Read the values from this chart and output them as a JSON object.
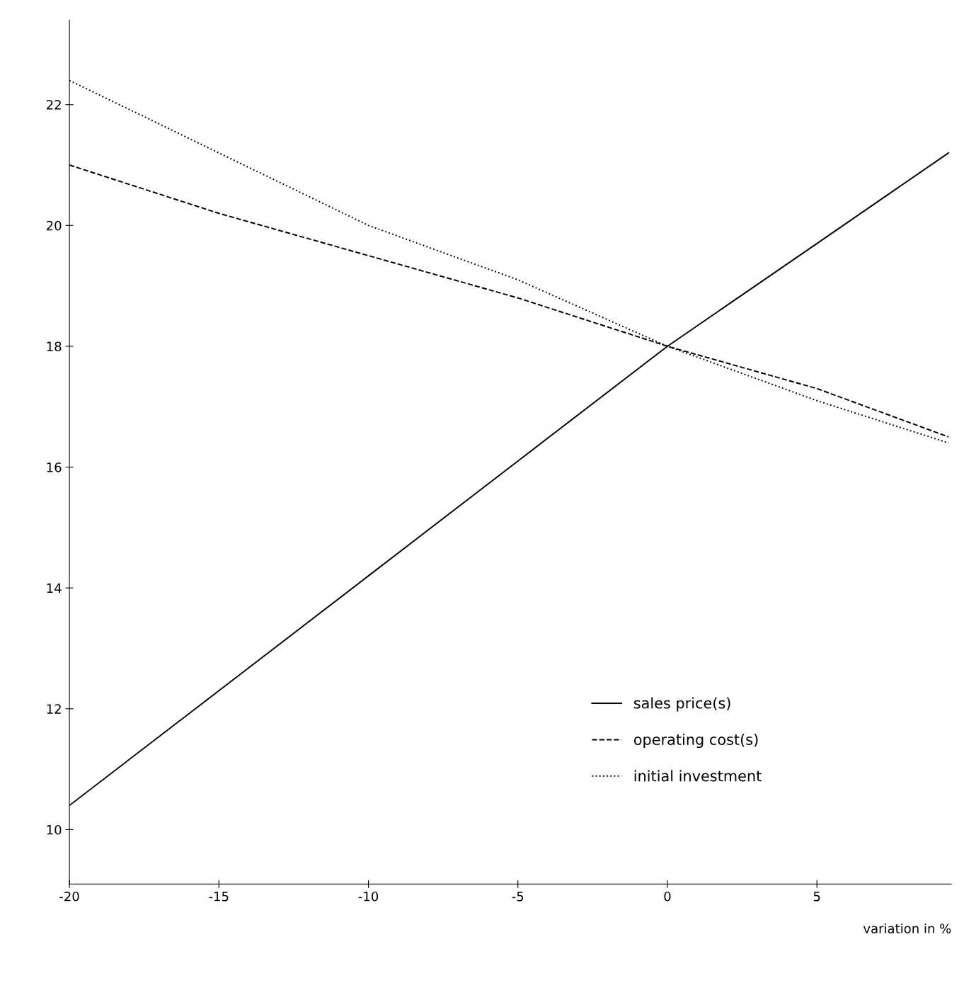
{
  "chart_data": {
    "type": "line",
    "xlabel": "variation in %",
    "x": [
      -20,
      -15,
      -10,
      -5,
      0,
      5,
      9.4
    ],
    "series": [
      {
        "name": "sales price(s)",
        "color": "#000000",
        "line_style": "solid",
        "values": [
          10.4,
          12.3,
          14.2,
          16.1,
          18,
          19.7,
          21.2
        ]
      },
      {
        "name": "operating cost(s)",
        "color": "#000000",
        "line_style": "dashed",
        "values": [
          21,
          20.2,
          19.5,
          18.8,
          18,
          17.3,
          16.5
        ]
      },
      {
        "name": "initial investment",
        "color": "#000000",
        "line_style": "dotted",
        "values": [
          22.4,
          21.2,
          20,
          19.1,
          18,
          17.1,
          16.4
        ]
      }
    ],
    "xlim": [
      -20,
      9.5
    ],
    "ylim": [
      9.1,
      23.4
    ],
    "xticks": [
      -20,
      -15,
      -10,
      -5,
      0,
      5
    ],
    "yticks": [
      10,
      12,
      14,
      16,
      18,
      20,
      22
    ],
    "grid": false,
    "legend": "lower right",
    "marker": "none"
  }
}
